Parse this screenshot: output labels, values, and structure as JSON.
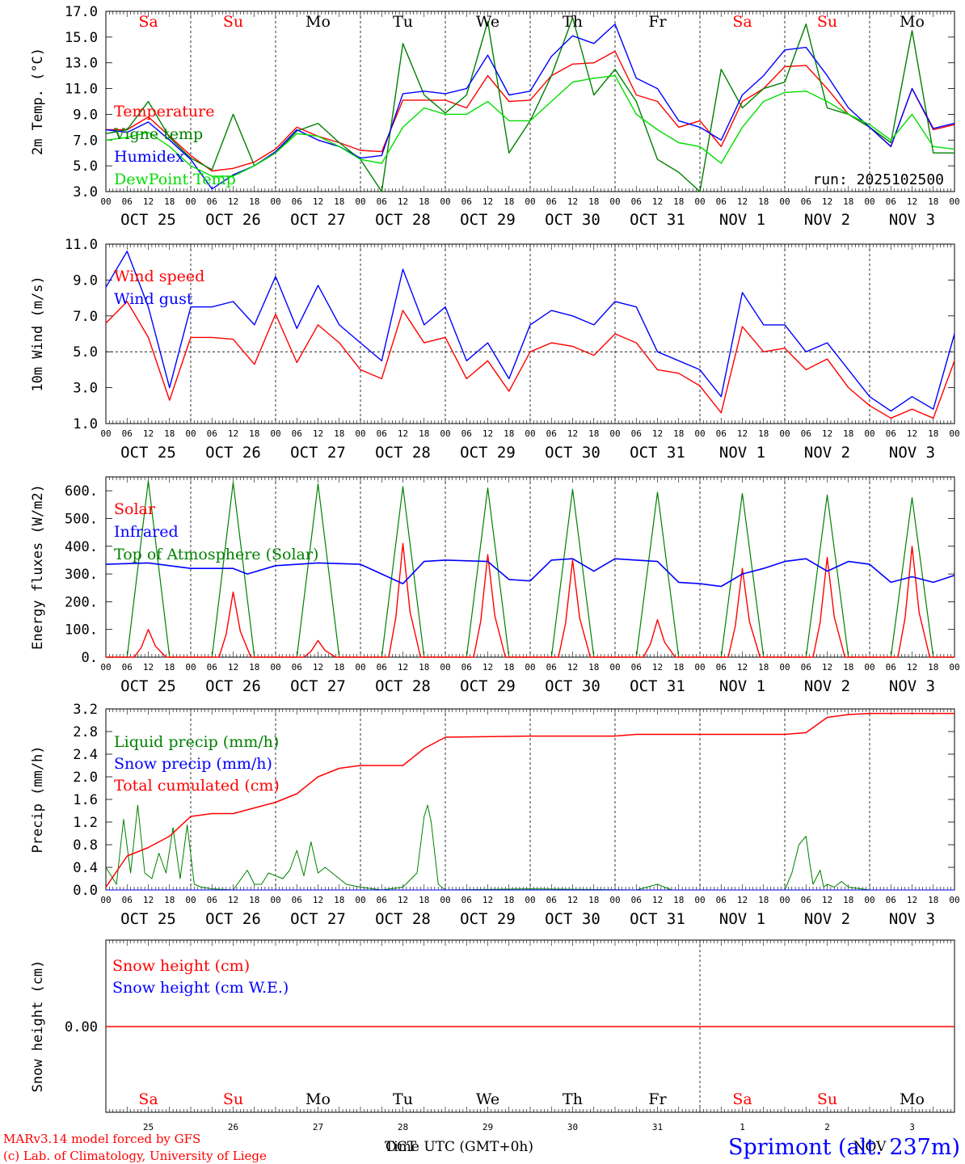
{
  "run_label": "run: 2025102500",
  "footer": {
    "credit1": "MARv3.14 model forced by GFS",
    "credit2": "(c) Lab. of Climatology, University of Liege",
    "time_label": "Time UTC (GMT+0h)",
    "oct_label": "OCT",
    "nov_label": "NOV",
    "station": "Sprimont (alt. 237m)"
  },
  "colors": {
    "red": "#ff0000",
    "blue": "#0000ff",
    "green": "#008000",
    "lightgreen": "#00dd00"
  },
  "day_letters": [
    "Sa",
    "Su",
    "Mo",
    "Tu",
    "We",
    "Th",
    "Fr",
    "Sa",
    "Su",
    "Mo"
  ],
  "weekend_flags": [
    true,
    true,
    false,
    false,
    false,
    false,
    false,
    true,
    true,
    false
  ],
  "day_labels": [
    "OCT 25",
    "OCT 26",
    "OCT 27",
    "OCT 28",
    "OCT 29",
    "OCT 30",
    "OCT 31",
    "NOV  1",
    "NOV  2",
    "NOV  3"
  ],
  "bottom_day_numbers": [
    "25",
    "26",
    "27",
    "28",
    "29",
    "30",
    "31",
    "1",
    "2",
    "3"
  ],
  "hour_ticks": [
    "00",
    "06",
    "12",
    "18"
  ],
  "chart_data": [
    {
      "type": "line",
      "title": "2m Temp. (°C)",
      "ylabel": "2m Temp. (°C)",
      "ylim": [
        3.0,
        17.0
      ],
      "yticks": [
        "3.0",
        "5.0",
        "7.0",
        "9.0",
        "11.0",
        "13.0",
        "15.0",
        "17.0"
      ],
      "x_unit": "hours since 2025-10-25 00 UTC",
      "xlim": [
        0,
        240
      ],
      "series": [
        {
          "name": "Temperature",
          "color": "#ff0000",
          "x": [
            0,
            6,
            12,
            18,
            24,
            30,
            36,
            42,
            48,
            54,
            60,
            66,
            72,
            78,
            84,
            90,
            96,
            102,
            108,
            114,
            120,
            126,
            132,
            138,
            144,
            150,
            156,
            162,
            168,
            174,
            180,
            186,
            192,
            198,
            204,
            210,
            216,
            222,
            228,
            234,
            240
          ],
          "y": [
            7.8,
            7.8,
            8.8,
            7.3,
            5.8,
            4.6,
            4.8,
            5.3,
            6.3,
            8.0,
            7.3,
            6.8,
            6.2,
            6.1,
            10.1,
            10.1,
            10.1,
            9.5,
            12.0,
            10.0,
            10.1,
            12.0,
            12.9,
            13.0,
            13.9,
            10.5,
            10.0,
            8.0,
            8.5,
            6.5,
            10.0,
            11.0,
            12.7,
            12.8,
            11.0,
            9.0,
            8.0,
            6.5,
            11.0,
            7.8,
            8.2
          ]
        },
        {
          "name": "Vigne temp",
          "color": "#008000",
          "x": [
            0,
            6,
            12,
            18,
            24,
            30,
            36,
            42,
            48,
            54,
            60,
            66,
            72,
            78,
            84,
            90,
            96,
            102,
            108,
            114,
            120,
            126,
            132,
            138,
            144,
            150,
            156,
            162,
            168,
            174,
            180,
            186,
            192,
            198,
            204,
            210,
            216,
            222,
            228,
            234,
            240
          ],
          "y": [
            7.5,
            7.8,
            10.0,
            7.2,
            5.6,
            4.7,
            9.0,
            5.0,
            6.0,
            7.7,
            8.3,
            6.8,
            5.5,
            3.0,
            14.5,
            10.5,
            9.1,
            10.5,
            16.2,
            6.0,
            8.5,
            12.0,
            16.5,
            10.5,
            12.5,
            10.0,
            5.5,
            4.5,
            3.0,
            12.5,
            9.5,
            11.0,
            11.5,
            16.0,
            9.5,
            9.0,
            8.0,
            6.8,
            15.5,
            6.0,
            6.0
          ]
        },
        {
          "name": "Humidex",
          "color": "#0000ff",
          "x": [
            0,
            6,
            12,
            18,
            24,
            30,
            36,
            42,
            48,
            54,
            60,
            66,
            72,
            78,
            84,
            90,
            96,
            102,
            108,
            114,
            120,
            126,
            132,
            138,
            144,
            150,
            156,
            162,
            168,
            174,
            180,
            186,
            192,
            198,
            204,
            210,
            216,
            222,
            228,
            234,
            240
          ],
          "y": [
            7.8,
            7.6,
            8.4,
            7.0,
            5.5,
            3.2,
            4.3,
            5.0,
            6.1,
            7.8,
            7.0,
            6.5,
            5.6,
            5.8,
            10.6,
            10.8,
            10.6,
            11.0,
            13.6,
            10.5,
            10.8,
            13.5,
            15.1,
            14.5,
            16.0,
            11.8,
            11.0,
            8.5,
            8.0,
            7.0,
            10.5,
            12.0,
            14.0,
            14.2,
            12.0,
            9.5,
            8.0,
            6.5,
            11.0,
            7.9,
            8.3
          ]
        },
        {
          "name": "DewPoint Temp",
          "color": "#00dd00",
          "x": [
            0,
            6,
            12,
            18,
            24,
            30,
            36,
            42,
            48,
            54,
            60,
            66,
            72,
            78,
            84,
            90,
            96,
            102,
            108,
            114,
            120,
            126,
            132,
            138,
            144,
            150,
            156,
            162,
            168,
            174,
            180,
            186,
            192,
            198,
            204,
            210,
            216,
            222,
            228,
            234,
            240
          ],
          "y": [
            7.0,
            7.2,
            7.6,
            6.5,
            5.0,
            4.2,
            4.2,
            5.0,
            6.0,
            7.5,
            7.3,
            6.5,
            5.5,
            5.2,
            8.0,
            9.5,
            9.0,
            9.0,
            10.0,
            8.5,
            8.5,
            10.0,
            11.5,
            11.8,
            12.0,
            9.0,
            7.8,
            6.8,
            6.5,
            5.2,
            8.0,
            10.0,
            10.7,
            10.8,
            10.0,
            9.0,
            8.2,
            7.0,
            9.0,
            6.5,
            6.3
          ]
        }
      ]
    },
    {
      "type": "line",
      "title": "10m Wind (m/s)",
      "ylabel": "10m Wind (m/s)",
      "ylim": [
        1.0,
        11.0
      ],
      "yticks": [
        "1.0",
        "3.0",
        "5.0",
        "7.0",
        "9.0",
        "11.0"
      ],
      "reference_line": 5.0,
      "xlim": [
        0,
        240
      ],
      "series": [
        {
          "name": "Wind speed",
          "color": "#ff0000",
          "x": [
            0,
            6,
            12,
            18,
            24,
            30,
            36,
            42,
            48,
            54,
            60,
            66,
            72,
            78,
            84,
            90,
            96,
            102,
            108,
            114,
            120,
            126,
            132,
            138,
            144,
            150,
            156,
            162,
            168,
            174,
            180,
            186,
            192,
            198,
            204,
            210,
            216,
            222,
            228,
            234,
            240
          ],
          "y": [
            6.6,
            7.8,
            5.8,
            2.3,
            5.8,
            5.8,
            5.7,
            4.3,
            7.1,
            4.4,
            6.5,
            5.5,
            4.0,
            3.5,
            7.3,
            5.5,
            5.8,
            3.5,
            4.5,
            2.8,
            5.0,
            5.5,
            5.3,
            4.8,
            6.0,
            5.5,
            4.0,
            3.8,
            3.1,
            1.6,
            6.4,
            5.0,
            5.2,
            4.0,
            4.6,
            3.0,
            2.0,
            1.3,
            1.8,
            1.3,
            4.5
          ]
        },
        {
          "name": "Wind gust",
          "color": "#0000ff",
          "x": [
            0,
            6,
            12,
            18,
            24,
            30,
            36,
            42,
            48,
            54,
            60,
            66,
            72,
            78,
            84,
            90,
            96,
            102,
            108,
            114,
            120,
            126,
            132,
            138,
            144,
            150,
            156,
            162,
            168,
            174,
            180,
            186,
            192,
            198,
            204,
            210,
            216,
            222,
            228,
            234,
            240
          ],
          "y": [
            8.6,
            10.6,
            7.5,
            3.0,
            7.5,
            7.5,
            7.8,
            6.5,
            9.2,
            6.3,
            8.7,
            6.5,
            5.5,
            4.5,
            9.6,
            6.5,
            7.5,
            4.5,
            5.5,
            3.5,
            6.5,
            7.3,
            7.0,
            6.5,
            7.8,
            7.5,
            5.0,
            4.5,
            4.0,
            2.5,
            8.3,
            6.5,
            6.5,
            5.0,
            5.5,
            4.0,
            2.5,
            1.7,
            2.5,
            1.8,
            6.0
          ]
        }
      ]
    },
    {
      "type": "line",
      "title": "Energy fluxes (W/m²)",
      "ylabel": "Energy fluxes (W/m2)",
      "ylim": [
        0,
        650
      ],
      "yticks": [
        "0.",
        "100.",
        "200.",
        "300.",
        "400.",
        "500.",
        "600."
      ],
      "xlim": [
        0,
        240
      ],
      "series": [
        {
          "name": "Solar",
          "color": "#ff0000",
          "daily_peaks": [
            100,
            235,
            60,
            410,
            370,
            350,
            135,
            320,
            360,
            400
          ]
        },
        {
          "name": "Infrared",
          "color": "#0000ff",
          "x": [
            0,
            12,
            24,
            36,
            40,
            48,
            60,
            72,
            78,
            84,
            90,
            96,
            108,
            114,
            120,
            126,
            132,
            138,
            144,
            150,
            156,
            162,
            168,
            174,
            180,
            186,
            192,
            198,
            204,
            210,
            216,
            222,
            228,
            234,
            240
          ],
          "y": [
            335,
            340,
            320,
            320,
            300,
            330,
            340,
            335,
            300,
            265,
            345,
            350,
            345,
            280,
            275,
            350,
            355,
            310,
            355,
            350,
            345,
            270,
            265,
            255,
            300,
            320,
            345,
            355,
            310,
            345,
            335,
            270,
            290,
            270,
            295
          ]
        },
        {
          "name": "Top of Atmosphere (Solar)",
          "color": "#008000",
          "daily_peaks": [
            635,
            630,
            625,
            615,
            610,
            605,
            595,
            590,
            585,
            575
          ]
        }
      ]
    },
    {
      "type": "line",
      "title": "Precip (mm/h)",
      "ylabel": "Precip (mm/h)",
      "ylim": [
        0.0,
        3.2
      ],
      "yticks": [
        "0.0",
        "0.4",
        "0.8",
        "1.2",
        "1.6",
        "2.0",
        "2.4",
        "2.8",
        "3.2"
      ],
      "xlim": [
        0,
        240
      ],
      "series": [
        {
          "name": "Liquid precip (mm/h)",
          "color": "#008000",
          "x": [
            0,
            3,
            5,
            7,
            9,
            11,
            13,
            15,
            17,
            19,
            21,
            23,
            25,
            27,
            30,
            36,
            40,
            42,
            44,
            46,
            48,
            50,
            52,
            54,
            56,
            58,
            60,
            62,
            64,
            66,
            68,
            72,
            78,
            84,
            88,
            90,
            91,
            92,
            94,
            96,
            120,
            150,
            156,
            160,
            168,
            192,
            194,
            196,
            198,
            199,
            200,
            202,
            203,
            204,
            206,
            208,
            210,
            216,
            240
          ],
          "y": [
            0.4,
            0.1,
            1.25,
            0.3,
            1.5,
            0.3,
            0.2,
            0.65,
            0.3,
            1.1,
            0.2,
            1.15,
            0.1,
            0.05,
            0.02,
            0.0,
            0.35,
            0.1,
            0.1,
            0.3,
            0.25,
            0.2,
            0.35,
            0.7,
            0.25,
            0.85,
            0.3,
            0.4,
            0.3,
            0.2,
            0.1,
            0.05,
            0.0,
            0.05,
            0.3,
            1.3,
            1.5,
            1.2,
            0.1,
            0.0,
            0.02,
            0.0,
            0.1,
            0.0,
            0.0,
            0.0,
            0.3,
            0.8,
            0.95,
            0.5,
            0.1,
            0.35,
            0.05,
            0.1,
            0.05,
            0.15,
            0.05,
            0.0,
            0.0
          ]
        },
        {
          "name": "Snow precip (mm/h)",
          "color": "#0000ff",
          "x": [
            0,
            240
          ],
          "y": [
            0.0,
            0.0
          ]
        },
        {
          "name": "Total cumulated (cm)",
          "color": "#ff0000",
          "x": [
            0,
            6,
            12,
            18,
            24,
            30,
            36,
            42,
            48,
            54,
            60,
            66,
            72,
            78,
            84,
            90,
            96,
            120,
            144,
            150,
            168,
            192,
            198,
            204,
            210,
            216,
            240
          ],
          "y": [
            0.05,
            0.6,
            0.75,
            0.95,
            1.3,
            1.35,
            1.35,
            1.45,
            1.55,
            1.7,
            2.0,
            2.15,
            2.2,
            2.2,
            2.2,
            2.5,
            2.7,
            2.72,
            2.72,
            2.75,
            2.75,
            2.75,
            2.78,
            3.05,
            3.1,
            3.12,
            3.12
          ]
        }
      ]
    },
    {
      "type": "line",
      "title": "Snow height (cm)",
      "ylabel": "Snow height (cm)",
      "yticks": [
        "0.00"
      ],
      "xlim": [
        0,
        240
      ],
      "series": [
        {
          "name": "Snow height (cm)",
          "color": "#ff0000",
          "x": [
            0,
            240
          ],
          "y": [
            0.0,
            0.0
          ]
        },
        {
          "name": "Snow height (cm W.E.)",
          "color": "#0000ff",
          "x": [
            0,
            240
          ],
          "y": [
            0.0,
            0.0
          ]
        }
      ]
    }
  ]
}
